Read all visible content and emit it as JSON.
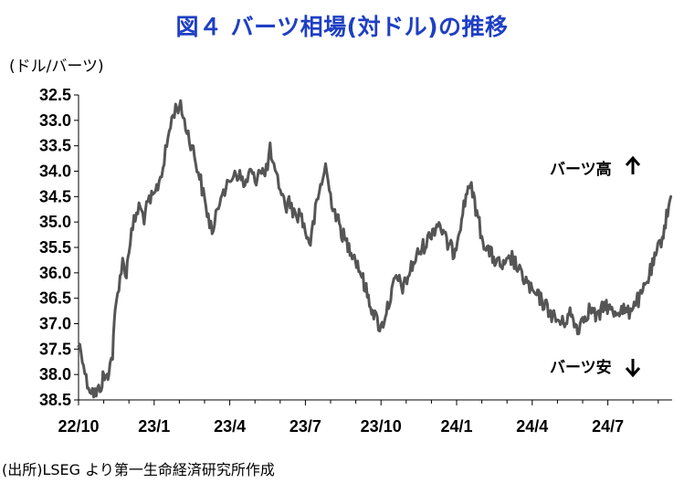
{
  "chart_data": {
    "type": "line",
    "title": "図４ バーツ相場(対ドル)の推移",
    "ylabel": "(ドル/バーツ)",
    "source": "(出所)LSEG より第一生命経済研究所作成",
    "y_inverted": true,
    "ylim": [
      32.5,
      38.5
    ],
    "y_ticks": [
      "32.5",
      "33.0",
      "33.5",
      "34.0",
      "34.5",
      "35.0",
      "35.5",
      "36.0",
      "36.5",
      "37.0",
      "37.5",
      "38.0",
      "38.5"
    ],
    "x_ticks": [
      "22/10",
      "23/1",
      "23/4",
      "23/7",
      "23/10",
      "24/1",
      "24/4",
      "24/7"
    ],
    "xlim": [
      0,
      23.55
    ],
    "grid": false,
    "annotations": {
      "up": "バーツ高",
      "down": "バーツ安"
    },
    "series": [
      {
        "color": "#555555",
        "x": [
          0.0,
          0.15,
          0.3,
          0.5,
          0.7,
          0.9,
          1.0,
          1.1,
          1.2,
          1.35,
          1.45,
          1.6,
          1.75,
          1.9,
          2.0,
          2.2,
          2.4,
          2.6,
          2.8,
          3.0,
          3.2,
          3.4,
          3.6,
          3.8,
          4.0,
          4.15,
          4.3,
          4.5,
          4.7,
          4.85,
          5.0,
          5.2,
          5.35,
          5.5,
          5.7,
          5.85,
          6.0,
          6.2,
          6.4,
          6.6,
          6.8,
          7.0,
          7.2,
          7.4,
          7.6,
          7.8,
          8.0,
          8.2,
          8.4,
          8.6,
          8.8,
          9.0,
          9.2,
          9.4,
          9.6,
          9.8,
          10.0,
          10.3,
          10.6,
          10.9,
          11.2,
          11.5,
          11.8,
          12.0,
          12.3,
          12.6,
          12.9,
          13.2,
          13.5,
          13.8,
          14.0,
          14.3,
          14.6,
          14.9,
          15.2,
          15.5,
          15.8,
          16.0,
          16.3,
          16.6,
          16.9,
          17.2,
          17.5,
          17.8,
          18.0,
          18.3,
          18.6,
          18.9,
          19.2,
          19.5,
          19.8,
          20.0,
          20.3,
          20.6,
          20.9,
          21.2,
          21.5,
          21.8,
          22.0,
          22.3,
          22.6,
          22.9,
          23.2,
          23.5
        ],
        "y": [
          37.4,
          37.6,
          38.1,
          38.3,
          38.4,
          38.2,
          38.0,
          38.1,
          37.9,
          37.6,
          36.8,
          36.2,
          35.8,
          36.0,
          35.5,
          35.0,
          34.7,
          34.9,
          34.6,
          34.5,
          34.2,
          33.8,
          33.2,
          32.8,
          32.7,
          32.9,
          33.2,
          33.5,
          33.9,
          34.2,
          34.6,
          35.0,
          35.2,
          34.8,
          34.3,
          34.4,
          34.2,
          34.0,
          34.1,
          34.3,
          34.0,
          34.2,
          33.9,
          34.1,
          33.6,
          34.1,
          34.3,
          34.7,
          34.6,
          34.9,
          34.8,
          35.2,
          35.4,
          34.8,
          34.3,
          33.9,
          34.5,
          35.0,
          35.4,
          35.6,
          36.0,
          36.5,
          36.9,
          37.1,
          36.6,
          36.1,
          36.3,
          35.9,
          35.6,
          35.4,
          35.2,
          35.0,
          35.4,
          35.6,
          34.9,
          34.2,
          34.8,
          35.3,
          35.6,
          35.8,
          35.9,
          35.7,
          36.0,
          36.2,
          36.4,
          36.5,
          36.7,
          36.9,
          37.0,
          36.8,
          37.1,
          36.9,
          36.7,
          36.9,
          36.6,
          36.8,
          36.7,
          36.8,
          36.6,
          36.5,
          36.1,
          35.7,
          35.2,
          34.5
        ]
      }
    ]
  }
}
